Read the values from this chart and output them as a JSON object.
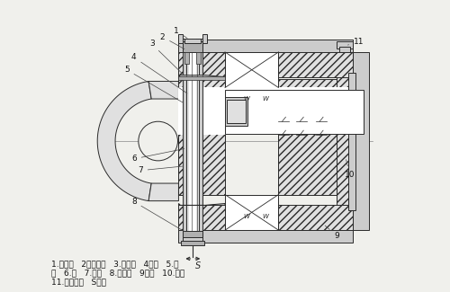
{
  "bg_color": "#f0f0ec",
  "lc": "#2a2a2a",
  "lw": 0.7,
  "caption1": "1.防尘盖   2调节螺管   3.摩擦片   4转子   5.轴",
  "caption2": "套   6.轴   7.法兰   8.衔铁盘   9弹簧   10.定子",
  "caption3": "11.调节螺母   S气隙",
  "hatch_fill": "#c8c8c8",
  "white": "#ffffff",
  "gray1": "#e0e0e0",
  "gray2": "#cccccc",
  "gray3": "#b0b0b0"
}
